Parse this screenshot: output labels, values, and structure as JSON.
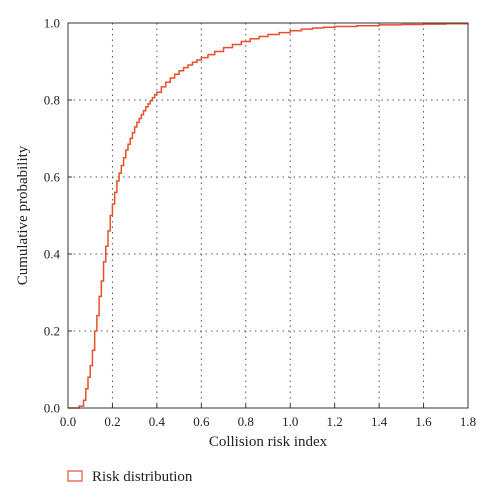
{
  "chart_data": {
    "type": "line",
    "subtype": "empirical-cdf-step",
    "title": "",
    "xlabel": "Collision risk index",
    "ylabel": "Cumulative probability",
    "xlim": [
      0.0,
      1.8
    ],
    "ylim": [
      0.0,
      1.0
    ],
    "xticks": [
      "0.0",
      "0.2",
      "0.4",
      "0.6",
      "0.8",
      "1.0",
      "1.2",
      "1.4",
      "1.6",
      "1.8"
    ],
    "yticks": [
      "0.0",
      "0.2",
      "0.4",
      "0.6",
      "0.8",
      "1.0"
    ],
    "grid": "dotted",
    "legend_position": "bottom-left",
    "series": [
      {
        "name": "Risk distribution",
        "color": "#e8502a",
        "x": [
          0.0,
          0.05,
          0.07,
          0.08,
          0.09,
          0.1,
          0.11,
          0.12,
          0.13,
          0.14,
          0.15,
          0.16,
          0.17,
          0.18,
          0.19,
          0.2,
          0.21,
          0.22,
          0.23,
          0.24,
          0.25,
          0.26,
          0.27,
          0.28,
          0.29,
          0.3,
          0.31,
          0.32,
          0.33,
          0.34,
          0.35,
          0.36,
          0.37,
          0.38,
          0.39,
          0.4,
          0.42,
          0.44,
          0.46,
          0.48,
          0.5,
          0.52,
          0.54,
          0.56,
          0.58,
          0.6,
          0.63,
          0.66,
          0.7,
          0.74,
          0.78,
          0.82,
          0.86,
          0.9,
          0.95,
          1.0,
          1.05,
          1.1,
          1.15,
          1.2,
          1.3,
          1.4,
          1.5,
          1.6,
          1.7,
          1.8
        ],
        "y": [
          0.0,
          0.005,
          0.02,
          0.05,
          0.08,
          0.11,
          0.15,
          0.2,
          0.24,
          0.29,
          0.33,
          0.38,
          0.42,
          0.46,
          0.5,
          0.53,
          0.56,
          0.59,
          0.61,
          0.63,
          0.65,
          0.67,
          0.685,
          0.7,
          0.715,
          0.73,
          0.742,
          0.752,
          0.762,
          0.772,
          0.782,
          0.79,
          0.798,
          0.806,
          0.814,
          0.82,
          0.834,
          0.846,
          0.857,
          0.867,
          0.876,
          0.884,
          0.891,
          0.898,
          0.904,
          0.91,
          0.918,
          0.926,
          0.936,
          0.944,
          0.952,
          0.959,
          0.965,
          0.97,
          0.975,
          0.98,
          0.984,
          0.987,
          0.989,
          0.991,
          0.993,
          0.995,
          0.996,
          0.997,
          0.998,
          1.0
        ]
      }
    ]
  }
}
